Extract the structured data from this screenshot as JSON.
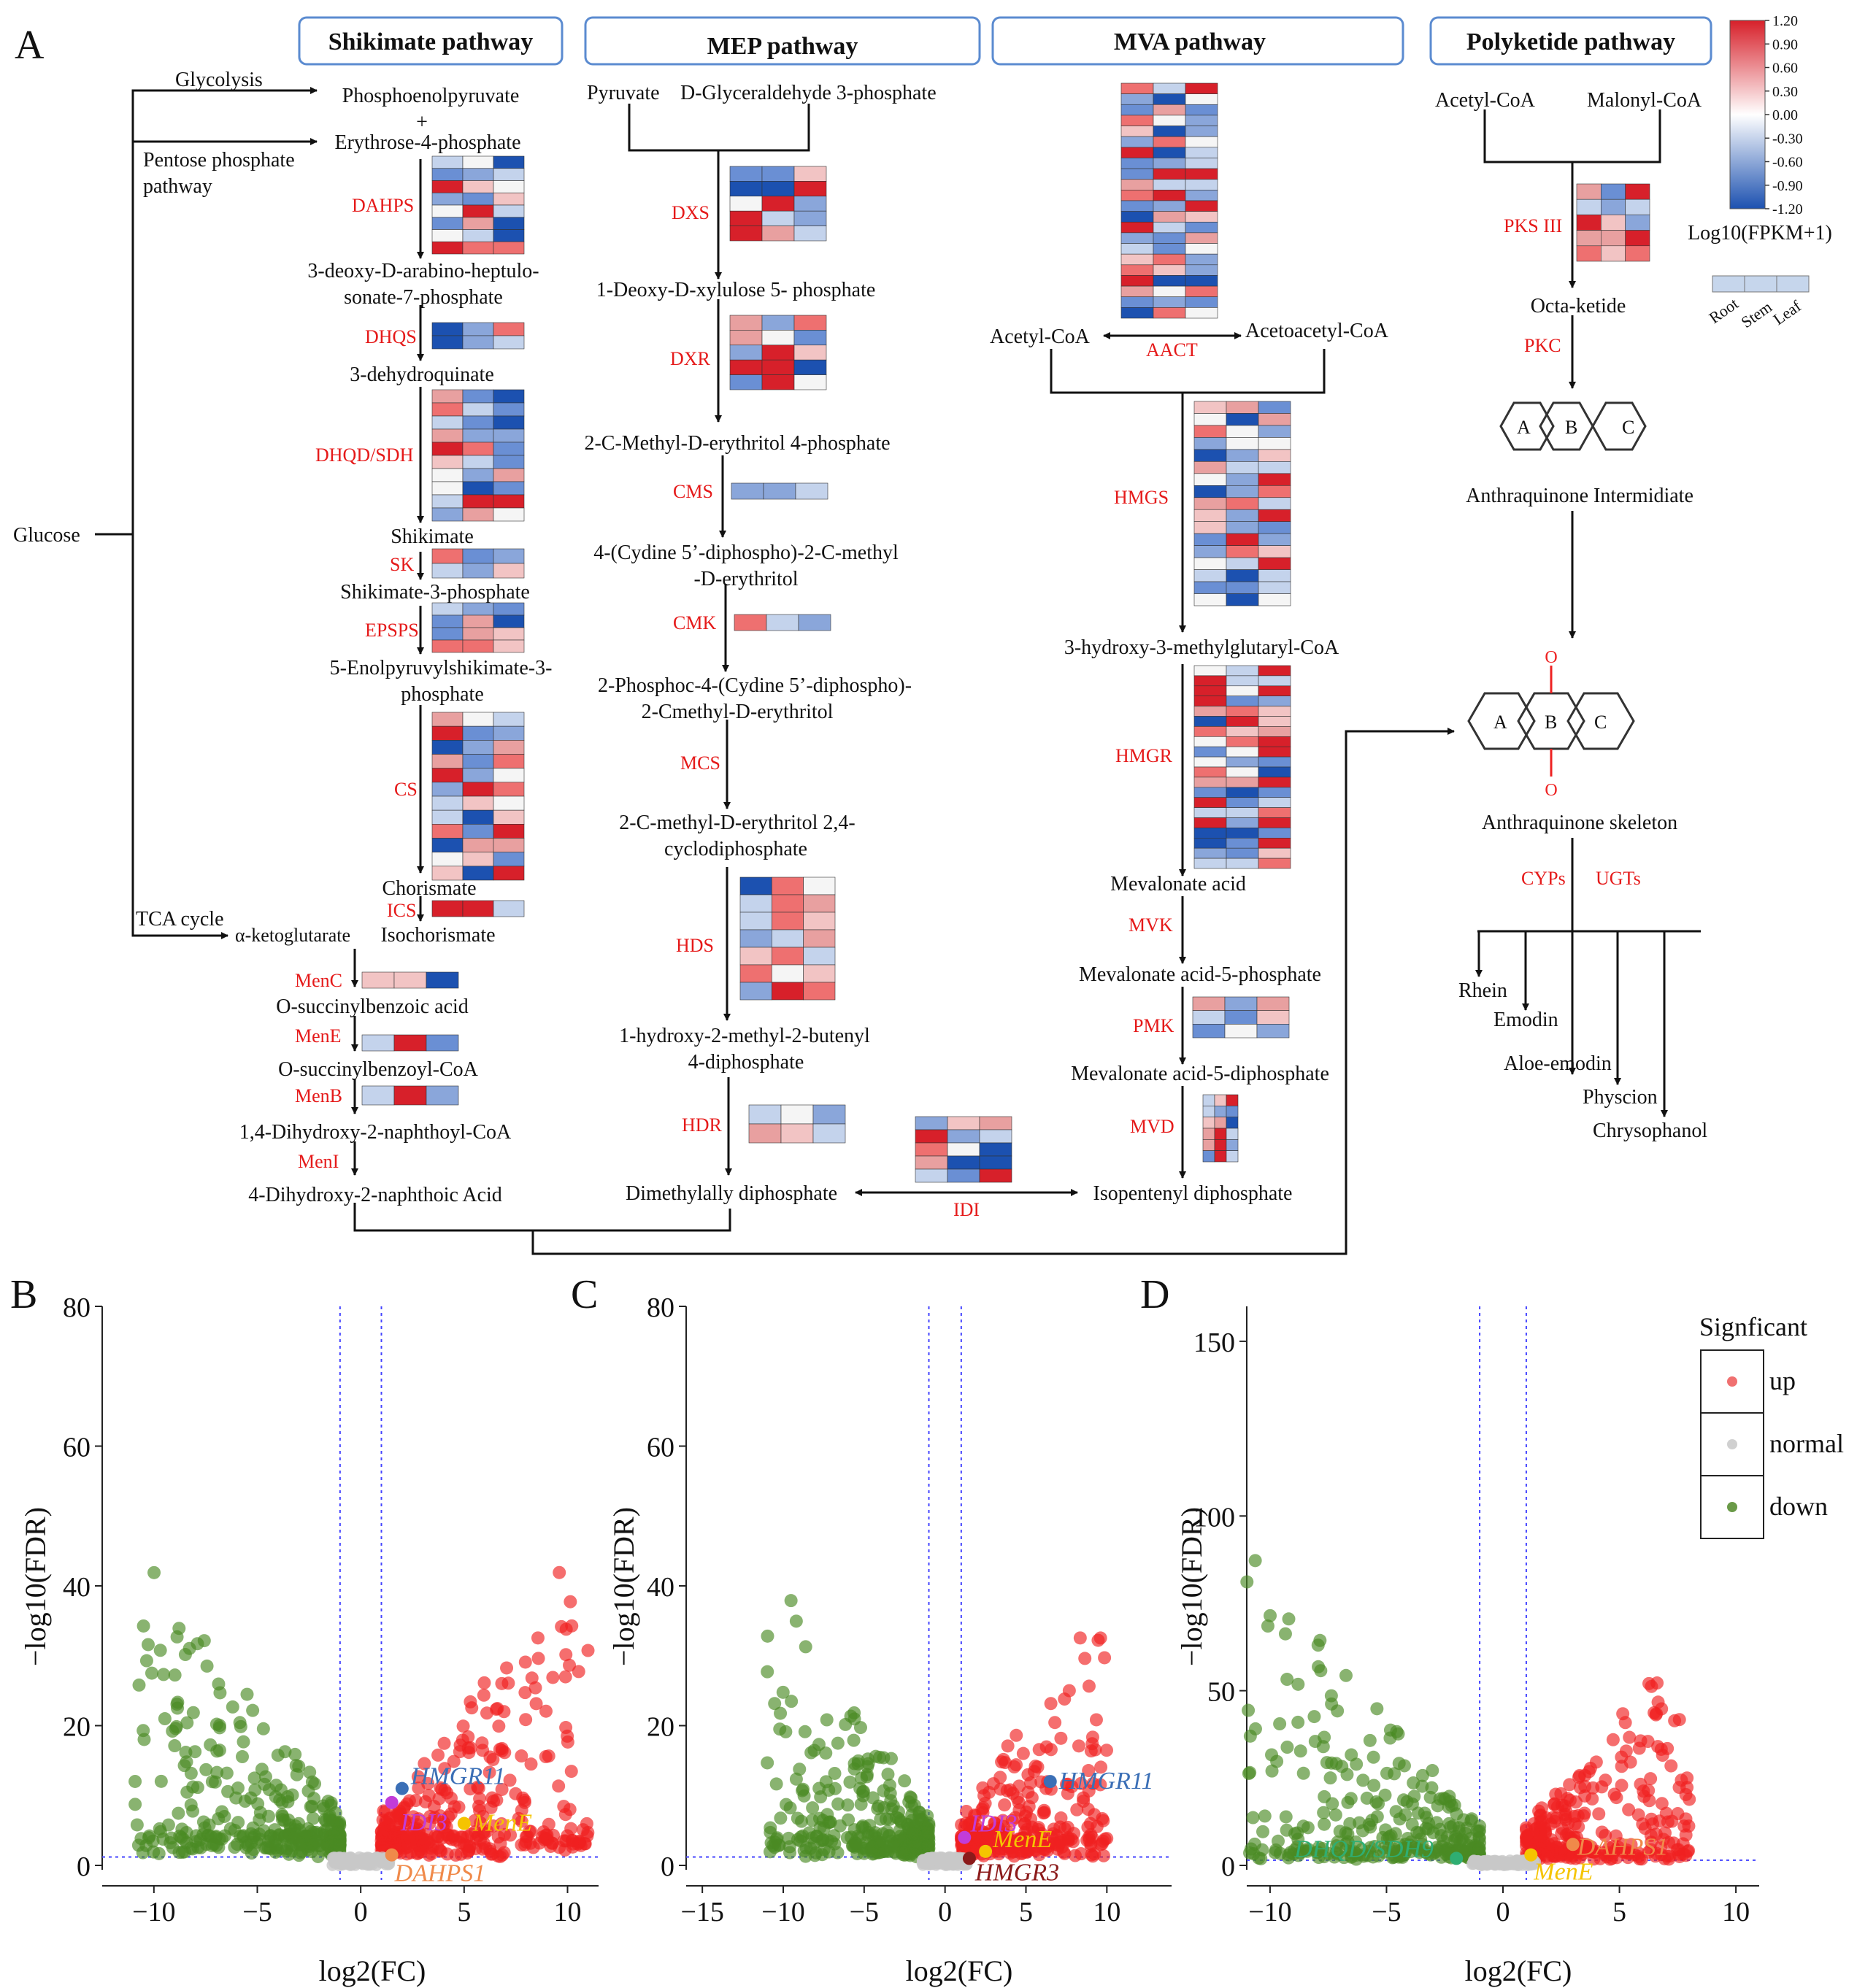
{
  "panels": {
    "a": "A",
    "b": "B",
    "c": "C",
    "d": "D"
  },
  "pathways": {
    "shikimate": "Shikimate pathway",
    "mep": "MEP pathway",
    "mva": "MVA pathway",
    "polyketide": "Polyketide pathway"
  },
  "shikimate": {
    "glucose": "Glucose",
    "glycolysis": "Glycolysis",
    "pentose1": "Pentose phosphate",
    "pentose2": "pathway",
    "tca": "TCA cycle",
    "pep": "Phosphoenolpyruvate",
    "plus": "+",
    "e4p": "Erythrose-4-phosphate",
    "dahp1": "3-deoxy-D-arabino-heptulo-",
    "dahp2": "sonate-7-phosphate",
    "dhq": "3-dehydroquinate",
    "shikimate": "Shikimate",
    "s3p": "Shikimate-3-phosphate",
    "epsp1": "5-Enolpyruvylshikimate-3-",
    "epsp2": "phosphate",
    "chorismate": "Chorismate",
    "isochorismate": "Isochorismate",
    "akg": "α-ketoglutarate",
    "osb": "O-succinylbenzoic acid",
    "osbcoa": "O-succinylbenzoyl-CoA",
    "dhnacoa": "1,4-Dihydroxy-2-naphthoyl-CoA",
    "dhna": "4-Dihydroxy-2-naphthoic Acid",
    "enz": {
      "dahps": "DAHPS",
      "dhqs": "DHQS",
      "dhqd": "DHQD/SDH",
      "sk": "SK",
      "epsps": "EPSPS",
      "cs": "CS",
      "ics": "ICS",
      "menc": "MenC",
      "mene": "MenE",
      "menb": "MenB",
      "meni": "MenI"
    }
  },
  "mep": {
    "pyruvate": "Pyruvate",
    "g3p": "D-Glyceraldehyde 3-phosphate",
    "dxp": "1-Deoxy-D-xylulose 5- phosphate",
    "mep": "2-C-Methyl-D-erythritol 4-phosphate",
    "cdpme1": "4-(Cydine 5’-diphospho)-2-C-methyl",
    "cdpme2": "-D-erythritol",
    "cdpmep1": "2-Phosphoc-4-(Cydine 5’-diphospho)-",
    "cdpmep2": "2-Cmethyl-D-erythritol",
    "mecpp1": "2-C-methyl-D-erythritol 2,4-",
    "mecpp2": "cyclodiphosphate",
    "hmbpp1": "1-hydroxy-2-methyl-2-butenyl",
    "hmbpp2": "4-diphosphate",
    "dmapp": "Dimethylally diphosphate",
    "enz": {
      "dxs": "DXS",
      "dxr": "DXR",
      "cms": "CMS",
      "cmk": "CMK",
      "mcs": "MCS",
      "hds": "HDS",
      "hdr": "HDR",
      "idi": "IDI"
    }
  },
  "mva": {
    "acetylcoa": "Acetyl-CoA",
    "acetoacetylcoa": "Acetoacetyl-CoA",
    "hmgcoa": "3-hydroxy-3-methylglutaryl-CoA",
    "mevalonate": "Mevalonate acid",
    "mvp": "Mevalonate acid-5-phosphate",
    "mvpp": "Mevalonate acid-5-diphosphate",
    "ipp": "Isopentenyl diphosphate",
    "enz": {
      "aact": "AACT",
      "hmgs": "HMGS",
      "hmgr": "HMGR",
      "mvk": "MVK",
      "pmk": "PMK",
      "mvd": "MVD"
    }
  },
  "polyketide": {
    "acetylcoa": "Acetyl-CoA",
    "malonylcoa": "Malonyl-CoA",
    "octaketide": "Octa-ketide",
    "intermediate": "Anthraquinone Intermidiate",
    "skeleton": "Anthraquinone skeleton",
    "ringA": "A",
    "ringB": "B",
    "ringC": "C",
    "oxygen": "O",
    "products": [
      "Rhein",
      "Emodin",
      "Aloe-emodin",
      "Physcion",
      "Chrysophanol"
    ],
    "enz": {
      "pks": "PKS III",
      "pkc": "PKC",
      "cyps": "CYPs",
      "ugts": "UGTs"
    }
  },
  "colorbar": {
    "ticks": [
      "1.20",
      "0.90",
      "0.60",
      "0.30",
      "0.00",
      "-0.30",
      "-0.60",
      "-0.90",
      "-1.20"
    ],
    "label": "Log10(FPKM+1)",
    "tissues": [
      "Root",
      "Stem",
      "Leaf"
    ],
    "colors": {
      "high": "#d7202a",
      "mid": "#ffffff",
      "low": "#1c51b0"
    }
  },
  "volcano": {
    "xlabel": "log2(FC)",
    "ylabel": "−log10(FDR)",
    "legend": {
      "title": "Signficant",
      "items": [
        "up",
        "normal",
        "down"
      ]
    },
    "colors": {
      "up": "#f02020",
      "normal": "#c8c8c8",
      "down": "#4a8a24"
    },
    "b": {
      "xticks": [
        "−10",
        "−5",
        "0",
        "5",
        "10"
      ],
      "yticks": [
        "0",
        "20",
        "40",
        "60",
        "80"
      ],
      "genes": [
        {
          "name": "HMGR11",
          "color": "#3b6fb6"
        },
        {
          "name": "IDI3",
          "color": "#c23cd8"
        },
        {
          "name": "MenE",
          "color": "#f5c400"
        },
        {
          "name": "DAHPS1",
          "color": "#f08a4a"
        }
      ]
    },
    "c": {
      "xticks": [
        "−15",
        "−10",
        "−5",
        "0",
        "5",
        "10"
      ],
      "yticks": [
        "0",
        "20",
        "40",
        "60",
        "80"
      ],
      "genes": [
        {
          "name": "HMGR11",
          "color": "#3b6fb6"
        },
        {
          "name": "IDI3",
          "color": "#c23cd8"
        },
        {
          "name": "MenE",
          "color": "#f5c400"
        },
        {
          "name": "HMGR3",
          "color": "#8b1a1a"
        }
      ]
    },
    "d": {
      "xticks": [
        "−10",
        "−5",
        "0",
        "5",
        "10"
      ],
      "yticks": [
        "0",
        "50",
        "100",
        "150"
      ],
      "genes": [
        {
          "name": "DHQD/SDH9",
          "color": "#2fae72"
        },
        {
          "name": "DAHPS1",
          "color": "#f08a4a"
        },
        {
          "name": "MenE",
          "color": "#f5c400"
        }
      ]
    }
  }
}
